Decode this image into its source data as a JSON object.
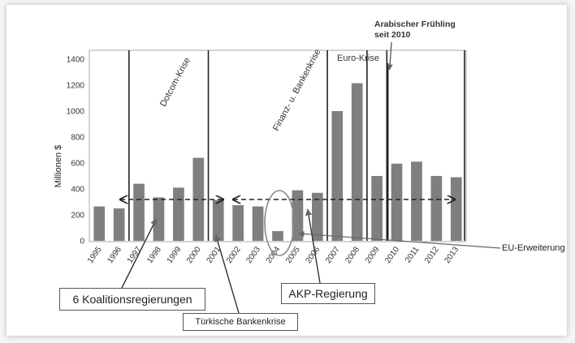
{
  "chart_data": {
    "type": "bar",
    "categories": [
      "1995",
      "1996",
      "1997",
      "1998",
      "1999",
      "2000",
      "2001",
      "2002",
      "2003",
      "2004",
      "2005",
      "2006",
      "2007",
      "2008",
      "2009",
      "2010",
      "2011",
      "2012",
      "2013"
    ],
    "values": [
      265,
      250,
      440,
      335,
      410,
      640,
      315,
      275,
      265,
      75,
      390,
      370,
      1000,
      1215,
      500,
      595,
      610,
      500,
      490
    ],
    "title": "",
    "xlabel": "",
    "ylabel": "Millionen $",
    "ylim": [
      0,
      1400
    ],
    "yticks": [
      0,
      200,
      400,
      600,
      800,
      1000,
      1200,
      1400
    ],
    "grid": false,
    "bar_color": "#7f7f7f",
    "average_level": 300,
    "event_lines_after_year": [
      "1996",
      "2000",
      "2006",
      "2008",
      "2009",
      "2013"
    ],
    "annotations": {
      "dotcom": "Dotcom-Krise",
      "finanz": "Finanz- u. Bankenkrise",
      "euro": "Euro-Krise",
      "arab_line1": "Arabischer Frühling",
      "arab_line2": "seit 2010",
      "eu": "EU-Erweiterung",
      "koalition": "6 Koalitionsregierungen",
      "akp": "AKP-Regierung",
      "bankenkrise": "Türkische Bankenkrise"
    }
  }
}
